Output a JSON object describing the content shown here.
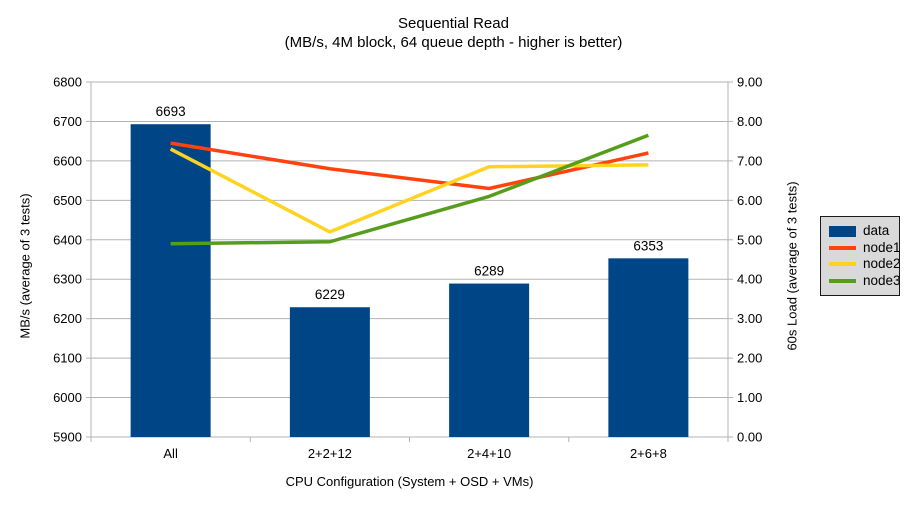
{
  "chart_data": {
    "type": "combo (bar + line)",
    "title": "Sequential Read",
    "subtitle": "(MB/s, 4M block, 64 queue depth - higher is better)",
    "categories": [
      "All",
      "2+2+12",
      "2+4+10",
      "2+6+8"
    ],
    "xlabel": "CPU Configuration (System + OSD + VMs)",
    "left_axis": {
      "label": "MB/s (average of 3 tests)",
      "min": 5900,
      "max": 6800,
      "step": 100
    },
    "right_axis": {
      "label": "60s Load (average of 3 tests)",
      "min": 0,
      "max": 9,
      "step": 1,
      "decimals": 2
    },
    "bar_series": {
      "name": "data",
      "color": "#004586",
      "axis": "left",
      "values": [
        6693,
        6229,
        6289,
        6353
      ],
      "data_labels": [
        "6693",
        "6229",
        "6289",
        "6353"
      ]
    },
    "line_series": [
      {
        "name": "node1",
        "color": "#FF420E",
        "axis": "right",
        "values": [
          7.45,
          6.8,
          6.3,
          7.2
        ]
      },
      {
        "name": "node2",
        "color": "#FFD320",
        "axis": "right",
        "values": [
          7.3,
          5.2,
          6.85,
          6.9
        ]
      },
      {
        "name": "node3",
        "color": "#579D1C",
        "axis": "right",
        "values": [
          4.9,
          4.95,
          6.1,
          7.65
        ]
      }
    ],
    "legend": {
      "position": "right",
      "items": [
        "data",
        "node1",
        "node2",
        "node3"
      ]
    },
    "grid": true,
    "colors": {
      "background": "#ffffff",
      "gridline": "#b3b3b3",
      "axis_line": "#b3b3b3",
      "text": "#000000",
      "legend_bg": "#d9d9d9",
      "legend_border": "#1a1a1a"
    }
  }
}
